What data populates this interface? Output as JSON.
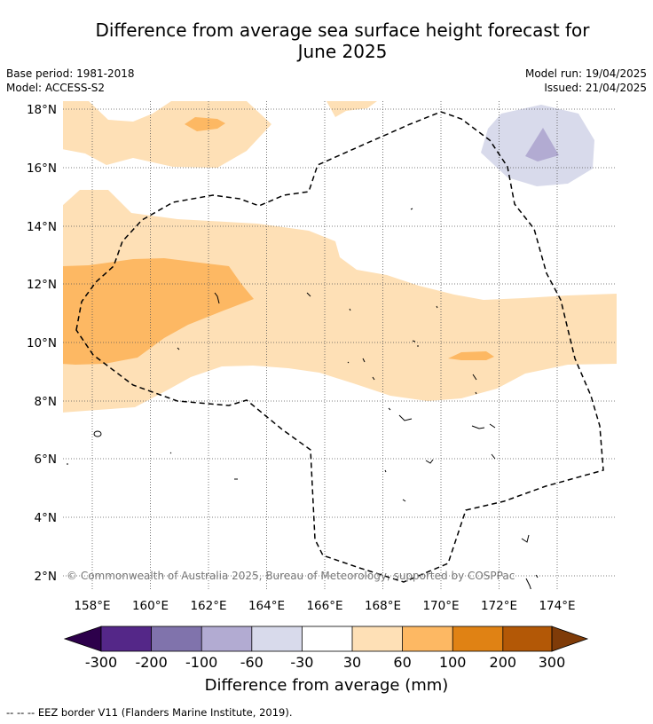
{
  "title_line1": "Difference from average sea surface height forecast for",
  "title_line2": "June 2025",
  "meta": {
    "base_period": "Base period: 1981-2018",
    "model": "Model: ACCESS-S2",
    "model_run": "Model run: 19/04/2025",
    "issued": "Issued: 21/04/2025"
  },
  "map": {
    "lat_labels": [
      "18°N",
      "16°N",
      "14°N",
      "12°N",
      "10°N",
      "8°N",
      "6°N",
      "4°N",
      "2°N"
    ],
    "lon_labels": [
      "158°E",
      "160°E",
      "162°E",
      "164°E",
      "166°E",
      "168°E",
      "170°E",
      "172°E",
      "174°E"
    ],
    "copyright": "© Commonwealth of Australia 2025, Bureau of Meteorology, supported by COSPPac"
  },
  "colorbar": {
    "label": "Difference from average (mm)",
    "ticks": [
      "-300",
      "-200",
      "-100",
      "-60",
      "-30",
      "30",
      "60",
      "100",
      "200",
      "300"
    ],
    "colors": {
      "under": "#2d004b",
      "m300_m200": "#542788",
      "m200_m100": "#8073ac",
      "m100_m60": "#b2abd2",
      "m60_m30": "#d8daeb",
      "m30_30": "#ffffff",
      "p30_60": "#fee0b6",
      "p60_100": "#fdb863",
      "p100_200": "#e08214",
      "p200_300": "#b35806",
      "over": "#7f3b08"
    }
  },
  "footer": "--  --  -- EEZ border V11 (Flanders Marine Institute, 2019)."
}
